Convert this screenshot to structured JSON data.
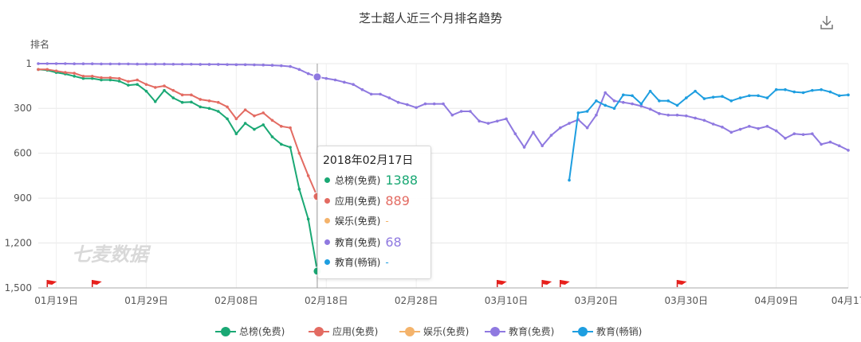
{
  "title": "芝士超人近三个月排名趋势",
  "download_icon": "download-icon",
  "tooltip": {
    "date": "2018年02月17日",
    "rows": [
      {
        "name": "总榜(免费)",
        "value": "1388",
        "color": "#1aa874"
      },
      {
        "name": "应用(免费)",
        "value": "889",
        "color": "#e36b62"
      },
      {
        "name": "娱乐(免费)",
        "value": "-",
        "color": "#f4b36b"
      },
      {
        "name": "教育(免费)",
        "value": "68",
        "color": "#8f79e0"
      },
      {
        "name": "教育(畅销)",
        "value": "-",
        "color": "#1e9ee0"
      }
    ]
  },
  "watermark": "七麦数据",
  "chart_data": {
    "type": "line",
    "title": "芝士超人近三个月排名趋势",
    "ylabel": "排名",
    "y_inverted": true,
    "ylim": [
      1,
      1500
    ],
    "yticks": [
      "1",
      "300",
      "600",
      "900",
      "1,200",
      "1,500"
    ],
    "ytick_values": [
      1,
      300,
      600,
      900,
      1200,
      1500
    ],
    "xlim": [
      "2018-01-17",
      "2018-04-17"
    ],
    "xticks": [
      "01月19日",
      "01月29日",
      "02月08日",
      "02月18日",
      "02月28日",
      "03月10日",
      "03月20日",
      "03月30日",
      "04月09日",
      "04月17"
    ],
    "xtick_days": [
      2,
      12,
      22,
      32,
      42,
      52,
      62,
      72,
      82,
      90
    ],
    "grid": true,
    "legend_position": "bottom-center",
    "hover_date": "2018-02-17",
    "flag_days": [
      1,
      6,
      51,
      56,
      58,
      71
    ],
    "series": [
      {
        "name": "总榜(免费)",
        "color": "#1aa874",
        "x": [
          0,
          1,
          2,
          3,
          4,
          5,
          6,
          7,
          8,
          9,
          10,
          11,
          12,
          13,
          14,
          15,
          16,
          17,
          18,
          19,
          20,
          21,
          22,
          23,
          24,
          25,
          26,
          27,
          28,
          29,
          30,
          31
        ],
        "y": [
          40,
          45,
          60,
          70,
          85,
          100,
          100,
          110,
          110,
          118,
          145,
          140,
          185,
          255,
          180,
          230,
          260,
          258,
          290,
          300,
          320,
          370,
          470,
          400,
          440,
          410,
          490,
          540,
          560,
          840,
          1040,
          1388
        ]
      },
      {
        "name": "应用(免费)",
        "color": "#e36b62",
        "x": [
          0,
          1,
          2,
          3,
          4,
          5,
          6,
          7,
          8,
          9,
          10,
          11,
          12,
          13,
          14,
          15,
          16,
          17,
          18,
          19,
          20,
          21,
          22,
          23,
          24,
          25,
          26,
          27,
          28,
          29,
          30,
          31
        ],
        "y": [
          40,
          40,
          50,
          60,
          65,
          85,
          85,
          95,
          95,
          100,
          120,
          110,
          140,
          160,
          150,
          180,
          210,
          210,
          240,
          250,
          260,
          290,
          370,
          310,
          350,
          330,
          380,
          420,
          430,
          600,
          750,
          889
        ]
      },
      {
        "name": "娱乐(免费)",
        "color": "#f4b36b",
        "x": [],
        "y": []
      },
      {
        "name": "教育(免费)",
        "color": "#8f79e0",
        "x": [
          0,
          1,
          2,
          3,
          4,
          5,
          6,
          7,
          8,
          9,
          10,
          11,
          12,
          13,
          14,
          15,
          16,
          17,
          18,
          19,
          20,
          21,
          22,
          23,
          24,
          25,
          26,
          27,
          28,
          29,
          30,
          31,
          32,
          33,
          34,
          35,
          36,
          37,
          38,
          39,
          40,
          41,
          42,
          43,
          44,
          45,
          46,
          47,
          48,
          49,
          50,
          51,
          52,
          53,
          54,
          55,
          56,
          57,
          58,
          59,
          60,
          61,
          62,
          63,
          64,
          65,
          66,
          67,
          68,
          69,
          70,
          71,
          72,
          73,
          74,
          75,
          76,
          77,
          78,
          79,
          80,
          81,
          82,
          83,
          84,
          85,
          86,
          87,
          88,
          89,
          90
        ],
        "y": [
          1,
          1,
          1,
          1,
          2,
          2,
          2,
          3,
          3,
          3,
          3,
          4,
          4,
          4,
          4,
          5,
          5,
          5,
          6,
          6,
          6,
          7,
          8,
          8,
          9,
          10,
          12,
          15,
          20,
          40,
          68,
          90,
          100,
          110,
          125,
          140,
          175,
          205,
          205,
          230,
          260,
          275,
          295,
          270,
          270,
          270,
          345,
          320,
          320,
          385,
          400,
          385,
          370,
          470,
          560,
          460,
          550,
          480,
          430,
          400,
          375,
          430,
          345,
          195,
          250,
          260,
          270,
          285,
          305,
          335,
          345,
          345,
          350,
          365,
          380,
          405,
          425,
          460,
          440,
          420,
          435,
          420,
          450,
          500,
          470,
          475,
          470,
          540,
          525,
          550,
          580
        ]
      },
      {
        "name": "教育(畅销)",
        "color": "#1e9ee0",
        "x": [
          59,
          60,
          61,
          62,
          63,
          64,
          65,
          66,
          67,
          68,
          69,
          70,
          71,
          72,
          73,
          74,
          75,
          76,
          77,
          78,
          79,
          80,
          81,
          82,
          83,
          84,
          85,
          86,
          87,
          88,
          89,
          90
        ],
        "y": [
          780,
          330,
          320,
          250,
          280,
          300,
          210,
          215,
          270,
          185,
          250,
          250,
          280,
          230,
          185,
          235,
          225,
          220,
          250,
          230,
          215,
          215,
          230,
          175,
          175,
          190,
          195,
          180,
          175,
          190,
          215,
          210
        ]
      }
    ]
  }
}
